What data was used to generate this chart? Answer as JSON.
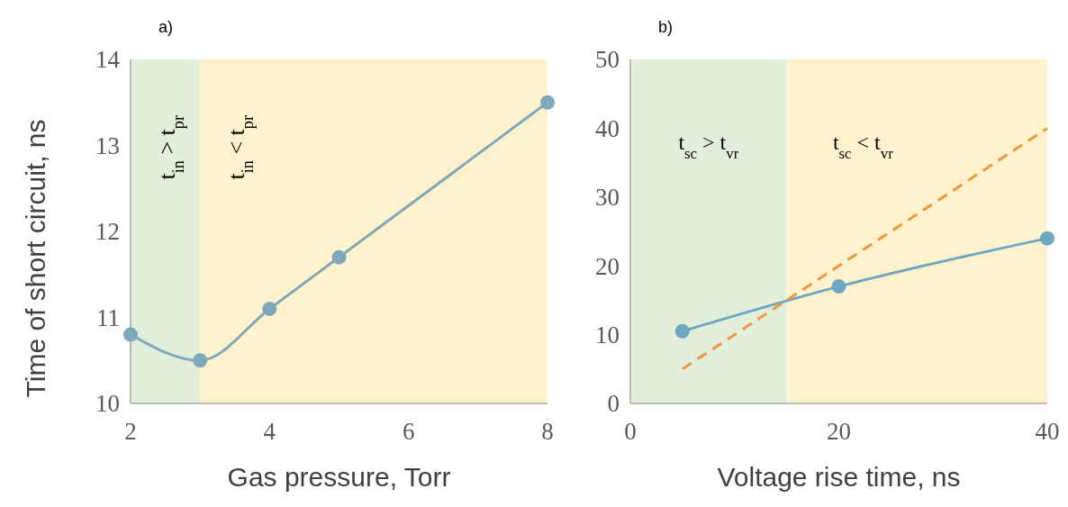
{
  "chart_data": [
    {
      "type": "line",
      "title": "a)",
      "xlabel": "Gas pressure, Torr",
      "ylabel": "Time of short  circuit, ns",
      "xlim": [
        2,
        8
      ],
      "xticks": [
        2,
        4,
        6,
        8
      ],
      "ylim": [
        10,
        14
      ],
      "yticks": [
        10,
        11,
        12,
        13,
        14
      ],
      "grid": false,
      "marker": "circle",
      "series": [
        {
          "color": "#7fa9bb",
          "x": [
            2,
            3,
            4,
            5,
            8
          ],
          "values": [
            10.8,
            10.5,
            11.1,
            11.7,
            13.5
          ]
        }
      ],
      "bands": [
        {
          "axis": "x",
          "from": 2,
          "to": 3,
          "color": "#e2efda"
        },
        {
          "axis": "x",
          "from": 3,
          "to": 8,
          "color": "#fff2cc"
        }
      ],
      "annotations": [
        "t$_{in}$ > t$_{pr}$",
        "t$_{in}$ < t$_{pr}$"
      ]
    },
    {
      "type": "line",
      "title": "b)",
      "xlabel": "Voltage rise time, ns",
      "xlim": [
        0,
        40
      ],
      "xticks": [
        0,
        20,
        40
      ],
      "ylim": [
        0,
        50
      ],
      "yticks": [
        0,
        10,
        20,
        30,
        40,
        50
      ],
      "grid": false,
      "marker": "circle",
      "series": [
        {
          "color": "#6fa7c2",
          "x": [
            5,
            20,
            40
          ],
          "values": [
            10.5,
            17,
            24
          ]
        },
        {
          "color": "#f0973f",
          "x": [
            5,
            40
          ],
          "values": [
            5,
            40
          ],
          "marker": "none",
          "line_style": "dashed"
        }
      ],
      "bands": [
        {
          "axis": "x",
          "from": 0,
          "to": 15,
          "color": "#e2efda"
        },
        {
          "axis": "x",
          "from": 15,
          "to": 40,
          "color": "#fff2cc"
        }
      ],
      "annotations": [
        "t$_{sc}$ > t$_{vr}$",
        "t$_{sc}$ < t$_{vr}$"
      ]
    }
  ]
}
